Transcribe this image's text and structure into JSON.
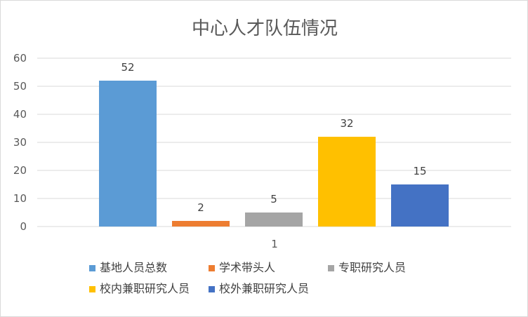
{
  "chart_data": {
    "type": "bar",
    "title": "中心人才队伍情况",
    "categories": [
      "1"
    ],
    "series": [
      {
        "name": "基地人员总数",
        "values": [
          52
        ],
        "color": "#5b9bd5"
      },
      {
        "name": "学术带头人",
        "values": [
          2
        ],
        "color": "#ed7d31"
      },
      {
        "name": "专职研究人员",
        "values": [
          5
        ],
        "color": "#a5a5a5"
      },
      {
        "name": "校内兼职研究人员",
        "values": [
          32
        ],
        "color": "#ffc000"
      },
      {
        "name": "校外兼职研究人员",
        "values": [
          15
        ],
        "color": "#4472c4"
      }
    ],
    "ylim": [
      0,
      60
    ],
    "yticks": [
      "0",
      "10",
      "20",
      "30",
      "40",
      "50",
      "60"
    ],
    "grid": true,
    "legend_position": "bottom",
    "data_labels": true
  }
}
